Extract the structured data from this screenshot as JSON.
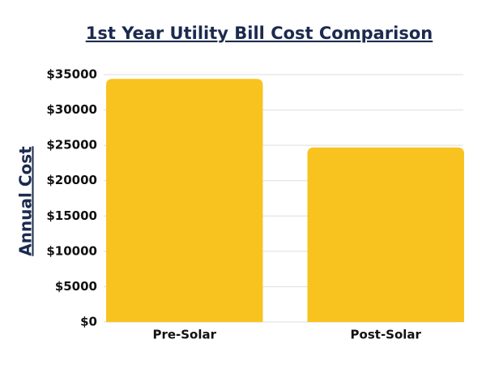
{
  "chart_data": {
    "type": "bar",
    "title": "1st Year Utility Bill Cost Comparison",
    "y_label": "Annual Cost",
    "categories": [
      "Pre-Solar",
      "Post-Solar"
    ],
    "values": [
      34400,
      24700
    ],
    "color": "#f9c31f",
    "ylim": [
      0,
      35000
    ],
    "yticks": [
      {
        "value": 0,
        "label": "$0"
      },
      {
        "value": 5000,
        "label": "$5000"
      },
      {
        "value": 10000,
        "label": "$10000"
      },
      {
        "value": 15000,
        "label": "$15000"
      },
      {
        "value": 20000,
        "label": "$20000"
      },
      {
        "value": 25000,
        "label": "$25000"
      },
      {
        "value": 30000,
        "label": "$30000"
      },
      {
        "value": 35000,
        "label": "$35000"
      }
    ],
    "grid": true
  }
}
